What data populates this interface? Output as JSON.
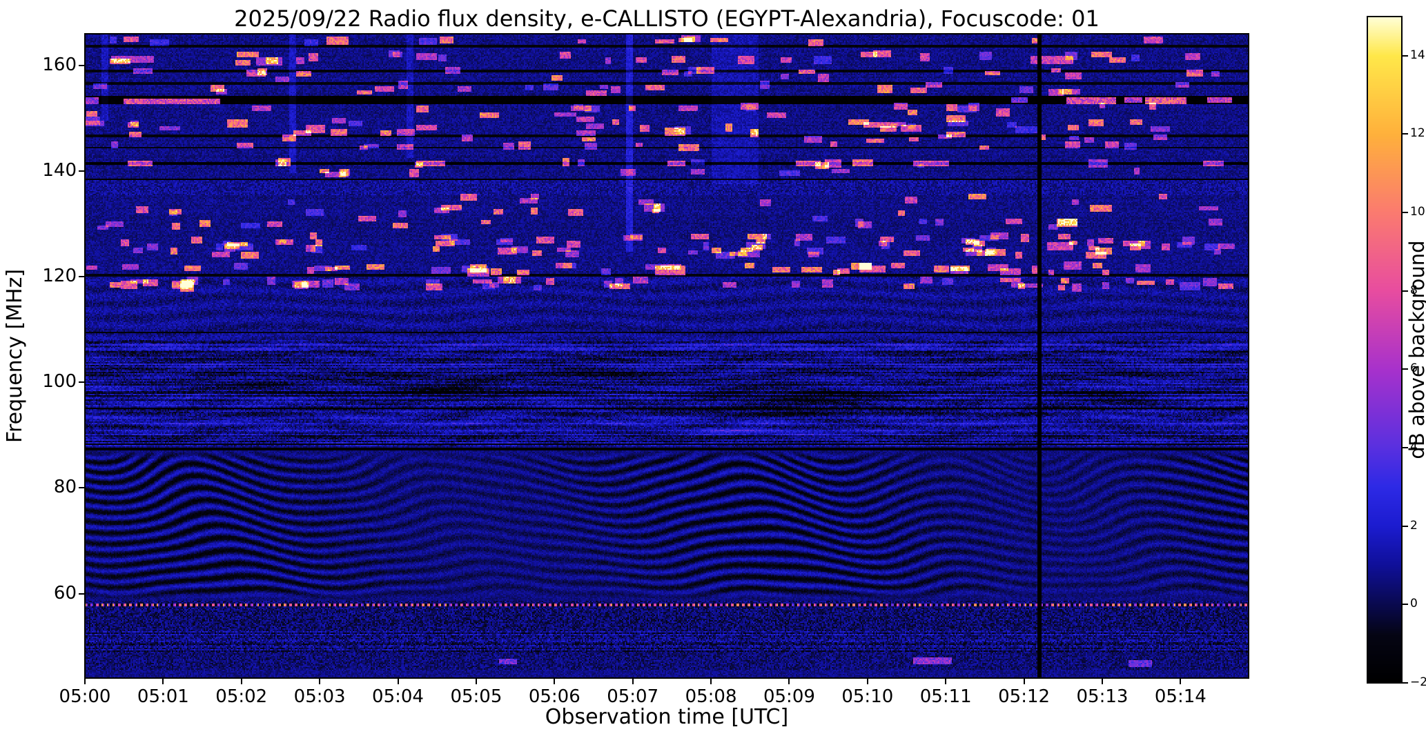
{
  "chart_data": {
    "type": "heatmap",
    "title": "2025/09/22  Radio flux density, e-CALLISTO (EGYPT-Alexandria), Focuscode: 01",
    "xlabel": "Observation time [UTC]",
    "ylabel": "Frequency [MHz]",
    "x_ticks": [
      "05:00",
      "05:01",
      "05:02",
      "05:03",
      "05:04",
      "05:05",
      "05:06",
      "05:07",
      "05:08",
      "05:09",
      "05:10",
      "05:11",
      "05:12",
      "05:13",
      "05:14"
    ],
    "x_start_utc": "05:00",
    "x_end_utc": "05:14:52",
    "x_span_minutes": 14.87,
    "y_ticks": [
      160,
      140,
      120,
      100,
      80,
      60
    ],
    "y_range_mhz": [
      44,
      166
    ],
    "grid": false,
    "legend": "none",
    "colorbar": {
      "label": "dB above background",
      "ticks": [
        14,
        12,
        10,
        8,
        6,
        4,
        2,
        0,
        -2
      ],
      "range": [
        -2,
        15
      ],
      "position": "right"
    },
    "colormap": [
      {
        "v": -2,
        "c": "#000000"
      },
      {
        "v": -0.8,
        "c": "#050514"
      },
      {
        "v": 0,
        "c": "#0a0a50"
      },
      {
        "v": 1,
        "c": "#10109a"
      },
      {
        "v": 2,
        "c": "#1c1cd0"
      },
      {
        "v": 3,
        "c": "#2e2ae6"
      },
      {
        "v": 4,
        "c": "#5a30e0"
      },
      {
        "v": 6,
        "c": "#a832cc"
      },
      {
        "v": 8,
        "c": "#e84da0"
      },
      {
        "v": 10,
        "c": "#fb7b70"
      },
      {
        "v": 12,
        "c": "#ffb13c"
      },
      {
        "v": 14,
        "c": "#ffe84a"
      },
      {
        "v": 15,
        "c": "#ffffd8"
      }
    ],
    "features": {
      "vertical_black_line_minute": 12.2,
      "dotted_line_mhz": 57.9,
      "fringe_band_mhz": [
        58.5,
        87.2
      ],
      "upper_fringe_band_mhz": [
        108,
        120
      ],
      "fm_band_mhz": [
        88,
        108
      ],
      "black_bands_mhz": [
        [
          152.8,
          154.3
        ],
        [
          141.2,
          141.8
        ],
        [
          138.25,
          138.7
        ],
        [
          87.2,
          87.7
        ],
        [
          94.85,
          95.25
        ]
      ],
      "dark_rows_mhz": [
        163.7,
        158.9,
        156.6,
        146.7,
        144.4,
        120.3,
        109.5,
        88.3
      ],
      "rfi_rows_mhz": [
        118.4,
        119.2,
        121.3,
        122.0,
        124.4,
        125.1,
        125.9,
        126.7,
        127.4,
        129.9,
        130.7,
        132.3,
        133.1,
        134.3,
        135.0,
        139.8,
        141.5,
        144.9,
        146.3,
        147.2,
        148.3,
        149.0,
        149.7,
        150.9,
        152.2,
        155.3,
        156.1,
        157.9,
        158.9,
        160.8,
        161.4,
        162.0,
        164.8
      ],
      "bright_segments": [
        {
          "t": 0.0,
          "f": 153.5,
          "w": 0.15,
          "h": 0.7,
          "a": 9
        },
        {
          "t": 0.5,
          "f": 153.4,
          "w": 1.2,
          "h": 0.6,
          "a": 12
        },
        {
          "t": 11.85,
          "f": 153.5,
          "w": 0.18,
          "h": 0.5,
          "a": 8
        },
        {
          "t": 12.55,
          "f": 153.5,
          "w": 0.6,
          "h": 0.7,
          "a": 12
        },
        {
          "t": 13.3,
          "f": 153.6,
          "w": 0.18,
          "h": 0.5,
          "a": 10
        },
        {
          "t": 13.55,
          "f": 153.4,
          "w": 0.5,
          "h": 0.7,
          "a": 13
        },
        {
          "t": 14.35,
          "f": 153.5,
          "w": 0.28,
          "h": 0.6,
          "a": 11
        },
        {
          "t": 0.55,
          "f": 141.5,
          "w": 0.28,
          "h": 0.5,
          "a": 10
        },
        {
          "t": 4.25,
          "f": 141.5,
          "w": 0.32,
          "h": 0.5,
          "a": 10
        },
        {
          "t": 7.45,
          "f": 141.5,
          "w": 0.2,
          "h": 0.5,
          "a": 9
        },
        {
          "t": 9.1,
          "f": 141.5,
          "w": 0.28,
          "h": 0.5,
          "a": 10
        },
        {
          "t": 10.6,
          "f": 141.5,
          "w": 0.42,
          "h": 0.5,
          "a": 9
        },
        {
          "t": 14.3,
          "f": 141.5,
          "w": 0.22,
          "h": 0.5,
          "a": 9
        },
        {
          "t": 9.95,
          "f": 148.9,
          "w": 0.3,
          "h": 0.6,
          "a": 10
        },
        {
          "t": 0.55,
          "f": 148.8,
          "w": 0.12,
          "h": 0.5,
          "a": 8
        },
        {
          "t": 7.3,
          "f": 121.4,
          "w": 0.35,
          "h": 1.2,
          "a": 10
        },
        {
          "t": 9.9,
          "f": 121.6,
          "w": 0.3,
          "h": 1.0,
          "a": 9
        },
        {
          "t": 4.9,
          "f": 120.9,
          "w": 0.25,
          "h": 0.9,
          "a": 9
        },
        {
          "t": 5.35,
          "f": 119.6,
          "w": 0.2,
          "h": 0.8,
          "a": 8
        },
        {
          "t": 12.3,
          "f": 126.0,
          "w": 0.3,
          "h": 1.0,
          "a": 8
        },
        {
          "t": 12.45,
          "f": 130.5,
          "w": 0.2,
          "h": 0.8,
          "a": 7
        },
        {
          "t": 0.35,
          "f": 161.3,
          "w": 0.5,
          "h": 1.0,
          "a": 7
        },
        {
          "t": 12.1,
          "f": 161.2,
          "w": 0.5,
          "h": 1.0,
          "a": 8
        },
        {
          "t": 2.2,
          "f": 160.9,
          "w": 0.3,
          "h": 0.8,
          "a": 6
        },
        {
          "t": 10.6,
          "f": 47.4,
          "w": 0.45,
          "h": 0.8,
          "a": 6
        },
        {
          "t": 5.3,
          "f": 47.2,
          "w": 0.2,
          "h": 0.6,
          "a": 5
        },
        {
          "t": 13.35,
          "f": 46.9,
          "w": 0.25,
          "h": 0.6,
          "a": 5
        }
      ],
      "fm_patches": [
        {
          "t": 4.6,
          "f": 98.5,
          "st": 1.1,
          "sf": 2.2,
          "a": -1.6
        },
        {
          "t": 9.2,
          "f": 96.5,
          "st": 1.4,
          "sf": 2.8,
          "a": -1.5
        },
        {
          "t": 8.6,
          "f": 90.8,
          "st": 0.9,
          "sf": 0.9,
          "a": 1.4
        },
        {
          "t": 2.1,
          "f": 99.5,
          "st": 0.7,
          "sf": 1.4,
          "a": -1.0
        },
        {
          "t": 12.9,
          "f": 97.0,
          "st": 1.0,
          "sf": 1.6,
          "a": -1.0
        },
        {
          "t": 6.3,
          "f": 101.5,
          "st": 0.9,
          "sf": 1.5,
          "a": -0.9
        }
      ],
      "vertical_smears": [
        {
          "t": 8.3,
          "w": 0.55,
          "f0": 138,
          "f1": 166,
          "a": 0.7
        },
        {
          "t": 6.95,
          "w": 0.07,
          "f0": 125,
          "f1": 166,
          "a": 1.6
        },
        {
          "t": 2.65,
          "w": 0.06,
          "f0": 140,
          "f1": 166,
          "a": 1.1
        },
        {
          "t": 4.15,
          "w": 0.06,
          "f0": 143,
          "f1": 166,
          "a": 1.0
        },
        {
          "t": 0.25,
          "w": 0.05,
          "f0": 150,
          "f1": 166,
          "a": 1.0
        }
      ]
    }
  }
}
